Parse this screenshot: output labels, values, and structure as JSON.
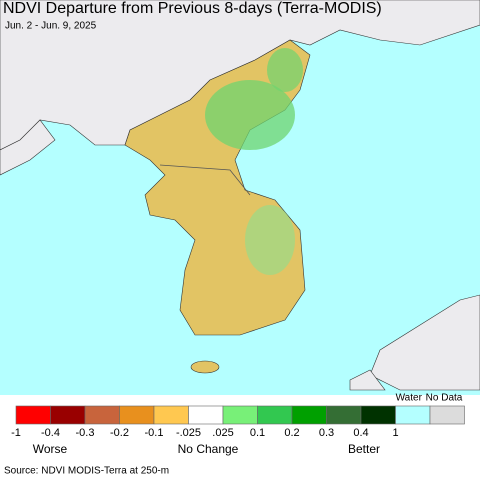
{
  "header": {
    "title": "NDVI Departure from Previous 8-days (Terra-MODIS)",
    "subtitle": "Jun. 2 - Jun. 9, 2025"
  },
  "legend": {
    "colors": [
      "#ff0000",
      "#990000",
      "#c8643c",
      "#e8901e",
      "#ffc850",
      "#ffffff",
      "#78f078",
      "#32c850",
      "#00a000",
      "#346e34",
      "#003200"
    ],
    "ticks": [
      "-1",
      "-0.4",
      "-0.3",
      "-0.2",
      "-0.1",
      "-.025",
      ".025",
      "0.1",
      "0.2",
      "0.3",
      "0.4",
      "1"
    ],
    "water": {
      "label": "Water",
      "color": "#b4ffff"
    },
    "no_data": {
      "label": "No Data",
      "color": "#dcdcdc"
    },
    "captions": [
      "Worse",
      "No Change",
      "Better"
    ]
  },
  "footer": {
    "source": "Source: NDVI MODIS-Terra at 250-m"
  }
}
